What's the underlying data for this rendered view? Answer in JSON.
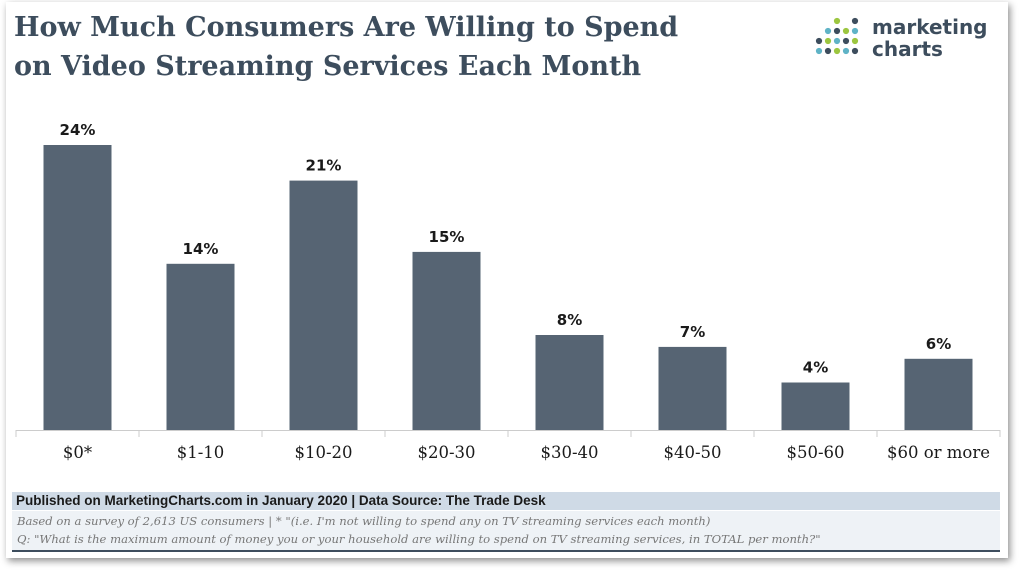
{
  "title": {
    "line1": "How Much Consumers Are Willing to Spend",
    "line2": "on Video Streaming Services Each Month"
  },
  "logo": {
    "line1": "marketing",
    "line2": "charts",
    "dot_colors": [
      "#5fb3c6",
      "#3d4d5d",
      "#9cc63f"
    ]
  },
  "colors": {
    "bar": "#566473",
    "title": "#3d4d5d",
    "axis": "#cccccc"
  },
  "chart_data": {
    "type": "bar",
    "categories": [
      "$0*",
      "$1-10",
      "$10-20",
      "$20-30",
      "$30-40",
      "$40-50",
      "$50-60",
      "$60 or more"
    ],
    "values": [
      24,
      14,
      21,
      15,
      8,
      7,
      4,
      6
    ],
    "value_labels": [
      "24%",
      "14%",
      "21%",
      "15%",
      "8%",
      "7%",
      "4%",
      "6%"
    ],
    "unit": "%",
    "ylim": [
      0,
      24
    ],
    "grid": false
  },
  "footer": {
    "published": "Published on MarketingCharts.com in January 2020 | Data Source: The Trade Desk",
    "note1": "Based on a survey of 2,613 US consumers | * \"(i.e. I'm not willing to spend any on TV streaming services each month)",
    "note2": "Q: \"What is the maximum amount of money you or your household are willing to spend on TV streaming services, in TOTAL per month?\""
  }
}
